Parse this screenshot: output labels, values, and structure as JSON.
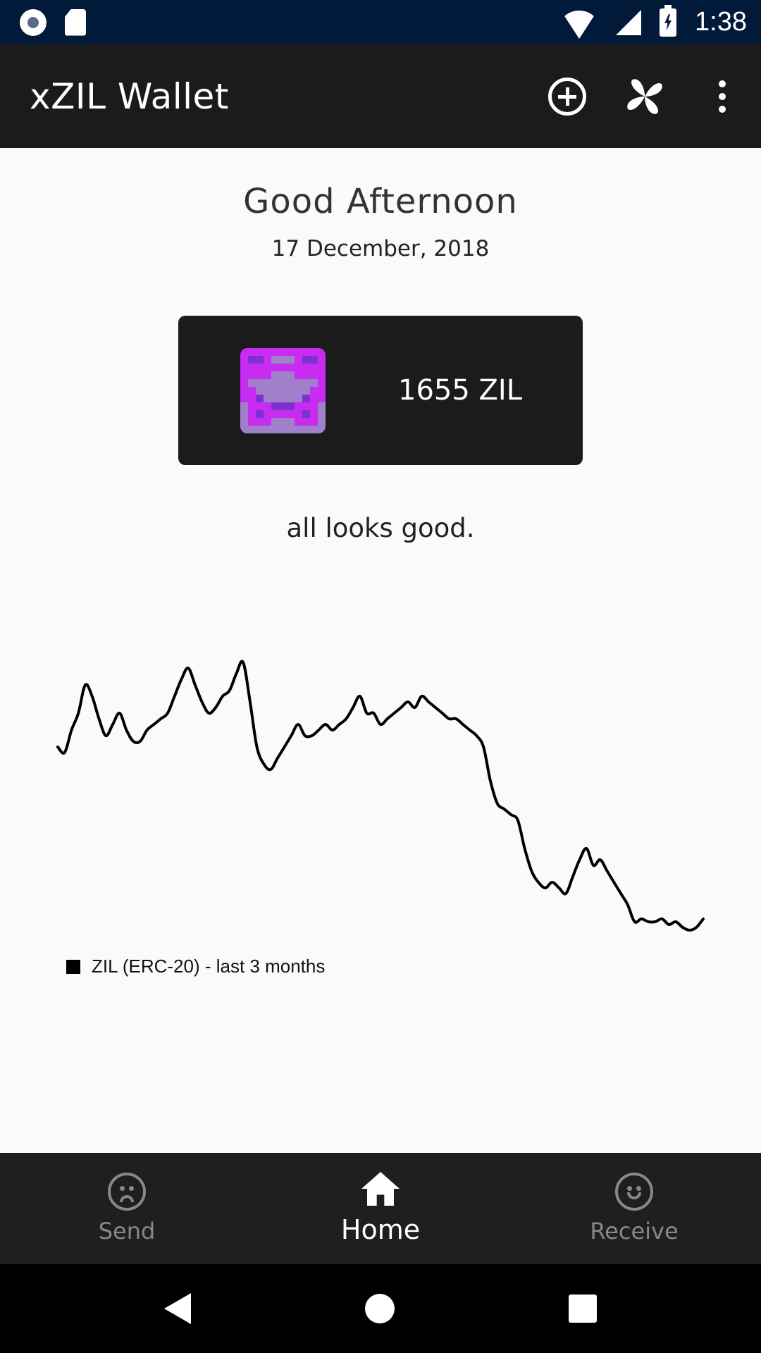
{
  "status_bar": {
    "time": "1:38"
  },
  "app_bar": {
    "title": "xZIL Wallet",
    "actions": [
      {
        "icon": "add-circle-icon"
      },
      {
        "icon": "pinwheel-icon"
      },
      {
        "icon": "more-vert-icon"
      }
    ]
  },
  "main": {
    "greeting": "Good Afternoon",
    "date": "17 December, 2018",
    "balance": "1655 ZIL",
    "status_message": "all looks good."
  },
  "colors": {
    "identicon_magenta": "#c72cf0",
    "identicon_purple": "#7c32d0",
    "identicon_lavender": "#a07fcb"
  },
  "chart_data": {
    "type": "line",
    "legend": "ZIL (ERC-20) - last 3 months",
    "grid": false,
    "axes_visible": false,
    "series": [
      {
        "values": [
          3.4,
          3.3,
          3.7,
          4.0,
          4.5,
          4.3,
          3.9,
          3.6,
          3.8,
          4.0,
          3.7,
          3.5,
          3.5,
          3.7,
          3.8,
          3.9,
          4.0,
          4.3,
          4.6,
          4.8,
          4.5,
          4.2,
          4.0,
          4.1,
          4.3,
          4.4,
          4.7,
          4.9,
          4.2,
          3.4,
          3.1,
          3.0,
          3.2,
          3.4,
          3.6,
          3.8,
          3.6,
          3.6,
          3.7,
          3.8,
          3.7,
          3.8,
          3.9,
          4.1,
          4.3,
          4.0,
          4.0,
          3.8,
          3.9,
          4.0,
          4.1,
          4.2,
          4.1,
          4.3,
          4.2,
          4.1,
          4.0,
          3.9,
          3.9,
          3.8,
          3.7,
          3.6,
          3.4,
          2.8,
          2.4,
          2.3,
          2.2,
          2.1,
          1.6,
          1.2,
          1.0,
          0.9,
          1.0,
          0.9,
          0.8,
          1.1,
          1.4,
          1.6,
          1.3,
          1.4,
          1.2,
          1.0,
          0.8,
          0.6,
          0.3,
          0.35,
          0.3,
          0.3,
          0.35,
          0.25,
          0.3,
          0.2,
          0.15,
          0.2,
          0.35
        ]
      }
    ]
  }
}
